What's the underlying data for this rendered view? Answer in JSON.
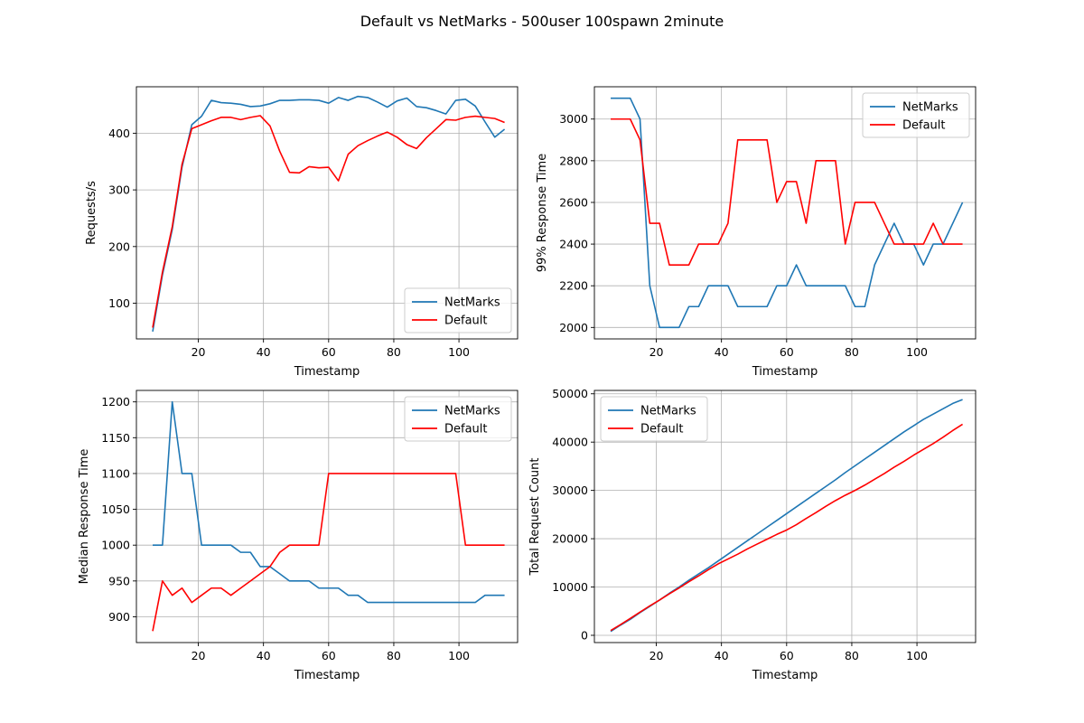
{
  "figure": {
    "title": "Default vs NetMarks - 500user 100spawn 2minute"
  },
  "chart_data": [
    {
      "type": "line",
      "xlabel": "Timestamp",
      "ylabel": "Requests/s",
      "xlim": [
        1,
        118
      ],
      "ylim": [
        37,
        482
      ],
      "xticks": [
        20,
        40,
        60,
        80,
        100
      ],
      "yticks": [
        100,
        200,
        300,
        400
      ],
      "grid": true,
      "legend": "bottom-right",
      "series": [
        {
          "name": "NetMarks",
          "color": "#1f77b4",
          "x": [
            6,
            9,
            12,
            15,
            18,
            21,
            24,
            27,
            30,
            33,
            36,
            39,
            42,
            45,
            48,
            51,
            54,
            57,
            60,
            63,
            66,
            69,
            72,
            75,
            78,
            81,
            84,
            87,
            90,
            93,
            96,
            99,
            102,
            105,
            108,
            111,
            114
          ],
          "y": [
            50,
            150,
            230,
            340,
            415,
            430,
            458,
            454,
            453,
            451,
            447,
            448,
            452,
            458,
            458,
            459,
            459,
            458,
            453,
            463,
            458,
            465,
            463,
            455,
            446,
            457,
            462,
            447,
            445,
            440,
            434,
            458,
            460,
            448,
            420,
            393,
            407
          ]
        },
        {
          "name": "Default",
          "color": "#ff0000",
          "x": [
            6,
            9,
            12,
            15,
            18,
            21,
            24,
            27,
            30,
            33,
            36,
            39,
            42,
            45,
            48,
            51,
            54,
            57,
            60,
            63,
            66,
            69,
            72,
            75,
            78,
            81,
            84,
            87,
            90,
            93,
            96,
            99,
            102,
            105,
            108,
            111,
            114
          ],
          "y": [
            57,
            155,
            235,
            345,
            408,
            415,
            422,
            428,
            428,
            424,
            428,
            431,
            413,
            368,
            331,
            330,
            341,
            339,
            340,
            316,
            363,
            378,
            387,
            395,
            402,
            393,
            380,
            373,
            392,
            408,
            424,
            423,
            428,
            430,
            428,
            426,
            419
          ]
        }
      ]
    },
    {
      "type": "line",
      "xlabel": "Timestamp",
      "ylabel": "99% Response Time",
      "xlim": [
        1,
        118
      ],
      "ylim": [
        1945,
        3155
      ],
      "xticks": [
        20,
        40,
        60,
        80,
        100
      ],
      "yticks": [
        2000,
        2200,
        2400,
        2600,
        2800,
        3000
      ],
      "grid": true,
      "legend": "top-right",
      "series": [
        {
          "name": "NetMarks",
          "color": "#1f77b4",
          "x": [
            6,
            9,
            12,
            15,
            18,
            21,
            24,
            27,
            30,
            33,
            36,
            39,
            42,
            45,
            48,
            51,
            54,
            57,
            60,
            63,
            66,
            69,
            72,
            75,
            78,
            81,
            84,
            87,
            90,
            93,
            96,
            99,
            102,
            105,
            108,
            111,
            114
          ],
          "y": [
            3100,
            3100,
            3100,
            3000,
            2200,
            2000,
            2000,
            2000,
            2100,
            2100,
            2200,
            2200,
            2200,
            2100,
            2100,
            2100,
            2100,
            2200,
            2200,
            2300,
            2200,
            2200,
            2200,
            2200,
            2200,
            2100,
            2100,
            2300,
            2400,
            2500,
            2400,
            2400,
            2300,
            2400,
            2400,
            2500,
            2600
          ]
        },
        {
          "name": "Default",
          "color": "#ff0000",
          "x": [
            6,
            9,
            12,
            15,
            18,
            21,
            24,
            27,
            30,
            33,
            36,
            39,
            42,
            45,
            48,
            51,
            54,
            57,
            60,
            63,
            66,
            69,
            72,
            75,
            78,
            81,
            84,
            87,
            90,
            93,
            96,
            99,
            102,
            105,
            108,
            111,
            114
          ],
          "y": [
            3000,
            3000,
            3000,
            2900,
            2500,
            2500,
            2300,
            2300,
            2300,
            2400,
            2400,
            2400,
            2500,
            2900,
            2900,
            2900,
            2900,
            2600,
            2700,
            2700,
            2500,
            2800,
            2800,
            2800,
            2400,
            2600,
            2600,
            2600,
            2500,
            2400,
            2400,
            2400,
            2400,
            2500,
            2400,
            2400,
            2400
          ]
        }
      ]
    },
    {
      "type": "line",
      "xlabel": "Timestamp",
      "ylabel": "Median Response Time",
      "xlim": [
        1,
        118
      ],
      "ylim": [
        864,
        1216
      ],
      "xticks": [
        20,
        40,
        60,
        80,
        100
      ],
      "yticks": [
        900,
        950,
        1000,
        1050,
        1100,
        1150,
        1200
      ],
      "grid": true,
      "legend": "top-right",
      "series": [
        {
          "name": "NetMarks",
          "color": "#1f77b4",
          "x": [
            6,
            9,
            12,
            15,
            18,
            21,
            24,
            27,
            30,
            33,
            36,
            39,
            42,
            45,
            48,
            51,
            54,
            57,
            60,
            63,
            66,
            69,
            72,
            75,
            78,
            81,
            84,
            87,
            90,
            93,
            96,
            99,
            102,
            105,
            108,
            111,
            114
          ],
          "y": [
            1000,
            1000,
            1200,
            1100,
            1100,
            1000,
            1000,
            1000,
            1000,
            990,
            990,
            970,
            970,
            960,
            950,
            950,
            950,
            940,
            940,
            940,
            930,
            930,
            920,
            920,
            920,
            920,
            920,
            920,
            920,
            920,
            920,
            920,
            920,
            920,
            930,
            930,
            930
          ]
        },
        {
          "name": "Default",
          "color": "#ff0000",
          "x": [
            6,
            9,
            12,
            15,
            18,
            21,
            24,
            27,
            30,
            33,
            36,
            39,
            42,
            45,
            48,
            51,
            54,
            57,
            60,
            63,
            66,
            69,
            72,
            75,
            78,
            81,
            84,
            87,
            90,
            93,
            96,
            99,
            102,
            105,
            108,
            111,
            114
          ],
          "y": [
            880,
            950,
            930,
            940,
            920,
            930,
            940,
            940,
            930,
            940,
            950,
            960,
            970,
            990,
            1000,
            1000,
            1000,
            1000,
            1100,
            1100,
            1100,
            1100,
            1100,
            1100,
            1100,
            1100,
            1100,
            1100,
            1100,
            1100,
            1100,
            1100,
            1000,
            1000,
            1000,
            1000,
            1000
          ]
        }
      ]
    },
    {
      "type": "line",
      "xlabel": "Timestamp",
      "ylabel": "Total Request Count",
      "xlim": [
        1,
        118
      ],
      "ylim": [
        -1500,
        50700
      ],
      "xticks": [
        20,
        40,
        60,
        80,
        100
      ],
      "yticks": [
        0,
        10000,
        20000,
        30000,
        40000,
        50000
      ],
      "grid": true,
      "legend": "top-left",
      "series": [
        {
          "name": "NetMarks",
          "color": "#1f77b4",
          "x": [
            6,
            9,
            12,
            15,
            18,
            21,
            24,
            27,
            30,
            33,
            36,
            39,
            42,
            45,
            48,
            51,
            54,
            57,
            60,
            63,
            66,
            69,
            72,
            75,
            78,
            81,
            84,
            87,
            90,
            93,
            96,
            99,
            102,
            105,
            108,
            111,
            114
          ],
          "y": [
            800,
            2100,
            3300,
            4700,
            6000,
            7300,
            8700,
            10000,
            11400,
            12700,
            14000,
            15400,
            16800,
            18200,
            19600,
            21000,
            22400,
            23800,
            25200,
            26600,
            28000,
            29400,
            30800,
            32200,
            33700,
            35100,
            36500,
            37900,
            39300,
            40700,
            42100,
            43400,
            44700,
            45800,
            46900,
            48000,
            48800
          ]
        },
        {
          "name": "Default",
          "color": "#ff0000",
          "x": [
            6,
            9,
            12,
            15,
            18,
            21,
            24,
            27,
            30,
            33,
            36,
            39,
            42,
            45,
            48,
            51,
            54,
            57,
            60,
            63,
            66,
            69,
            72,
            75,
            78,
            81,
            84,
            87,
            90,
            93,
            96,
            99,
            102,
            105,
            108,
            111,
            114
          ],
          "y": [
            1000,
            2200,
            3500,
            4800,
            6100,
            7300,
            8600,
            9800,
            11100,
            12300,
            13600,
            14800,
            15800,
            16800,
            17900,
            18900,
            19900,
            20900,
            21800,
            22900,
            24200,
            25400,
            26700,
            27900,
            29000,
            30000,
            31100,
            32300,
            33500,
            34800,
            36000,
            37300,
            38500,
            39700,
            41000,
            42400,
            43700
          ]
        }
      ]
    }
  ]
}
